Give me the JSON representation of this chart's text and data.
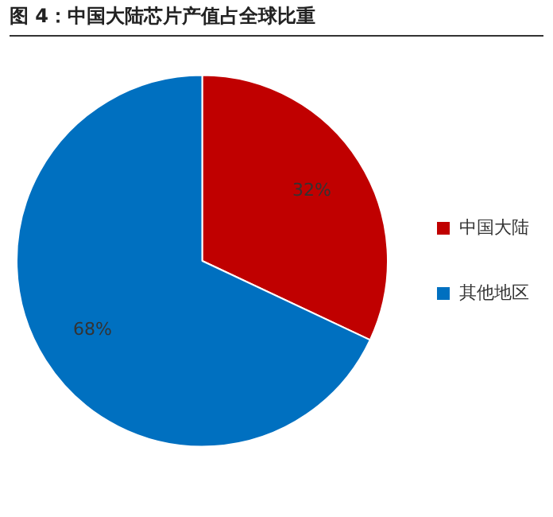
{
  "chart_data": {
    "type": "pie",
    "title": "图 4：中国大陆芯片产值占全球比重",
    "categories": [
      "中国大陆",
      "其他地区"
    ],
    "values": [
      32,
      68
    ],
    "colors": [
      "#c00000",
      "#0070c0"
    ],
    "value_labels": [
      "32%",
      "68%"
    ],
    "legend": "right"
  }
}
